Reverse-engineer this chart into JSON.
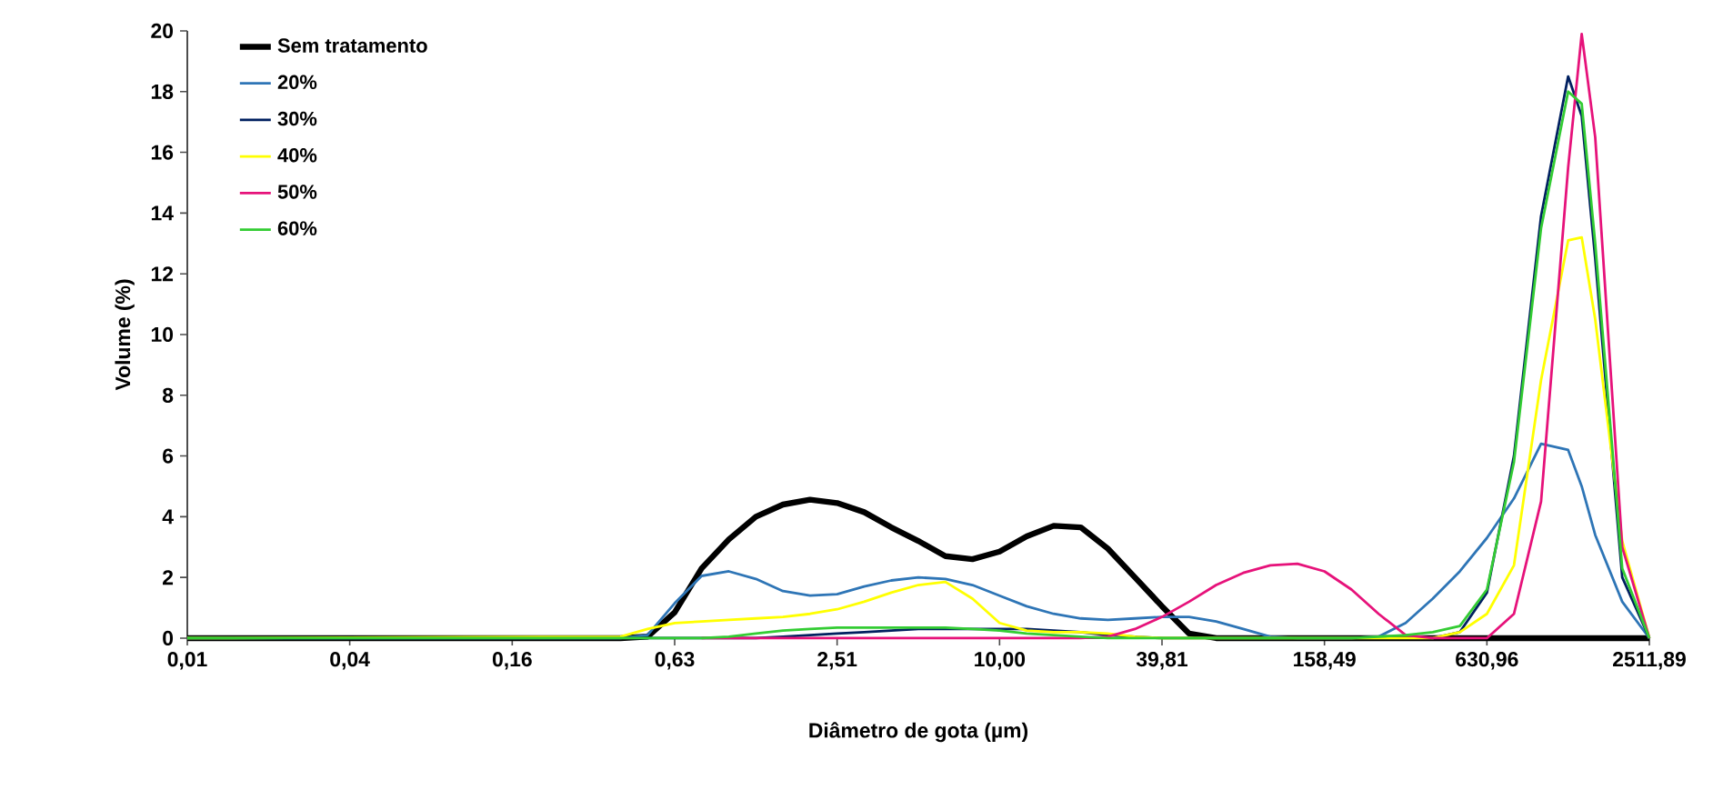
{
  "chart_data": {
    "type": "line",
    "xlabel": "Diâmetro de gota (µm)",
    "ylabel": "Volume (%)",
    "log": "x",
    "legend": "top left",
    "xlim": [
      0.01,
      2511.89
    ],
    "ylim": [
      0,
      20
    ],
    "xticks": [
      {
        "value": 0.01,
        "label": "0,01"
      },
      {
        "value": 0.0398,
        "label": "0,04"
      },
      {
        "value": 0.1585,
        "label": "0,16"
      },
      {
        "value": 0.631,
        "label": "0,63"
      },
      {
        "value": 2.512,
        "label": "2,51"
      },
      {
        "value": 10,
        "label": "10,00"
      },
      {
        "value": 39.81,
        "label": "39,81"
      },
      {
        "value": 158.49,
        "label": "158,49"
      },
      {
        "value": 630.96,
        "label": "630,96"
      },
      {
        "value": 2511.89,
        "label": "2511,89"
      }
    ],
    "yticks": [
      0,
      2,
      4,
      6,
      8,
      10,
      12,
      14,
      16,
      18,
      20
    ],
    "x": [
      0.01,
      0.398,
      0.501,
      0.631,
      0.794,
      1.0,
      1.259,
      1.585,
      1.995,
      2.512,
      3.162,
      3.981,
      5.012,
      6.31,
      7.943,
      10,
      12.59,
      15.85,
      19.95,
      25.12,
      31.62,
      39.81,
      50.12,
      63.1,
      79.43,
      100,
      125.9,
      158.5,
      199.5,
      251.2,
      316.2,
      398.1,
      501.2,
      631.0,
      794.3,
      1000,
      1259,
      1413,
      1585,
      1995,
      2511.89
    ],
    "series": [
      {
        "name": "Sem tratamento",
        "color": "#000000",
        "values": [
          0,
          0,
          0.05,
          0.85,
          2.3,
          3.25,
          4.0,
          4.4,
          4.56,
          4.45,
          4.15,
          3.65,
          3.2,
          2.7,
          2.6,
          2.85,
          3.35,
          3.7,
          3.65,
          2.95,
          2.0,
          1.05,
          0.15,
          0,
          0,
          0,
          0,
          0,
          0,
          0,
          0,
          0,
          0,
          0,
          0,
          0,
          0,
          0,
          0,
          0,
          0
        ]
      },
      {
        "name": "20%",
        "color": "#2e75b6",
        "values": [
          0,
          0,
          0.1,
          1.15,
          2.05,
          2.2,
          1.95,
          1.55,
          1.4,
          1.45,
          1.7,
          1.9,
          2.0,
          1.95,
          1.75,
          1.4,
          1.05,
          0.8,
          0.65,
          0.6,
          0.65,
          0.7,
          0.7,
          0.55,
          0.3,
          0.05,
          0,
          0,
          0,
          0.05,
          0.5,
          1.3,
          2.2,
          3.3,
          4.6,
          6.4,
          6.2,
          5.0,
          3.4,
          1.2,
          0
        ]
      },
      {
        "name": "30%",
        "color": "#002060",
        "values": [
          0,
          0,
          0,
          0,
          0,
          0,
          0,
          0.05,
          0.1,
          0.15,
          0.2,
          0.25,
          0.3,
          0.3,
          0.3,
          0.3,
          0.3,
          0.25,
          0.2,
          0.1,
          0.05,
          0,
          0,
          0,
          0,
          0,
          0,
          0,
          0,
          0,
          0,
          0,
          0.2,
          1.5,
          6.0,
          13.9,
          18.5,
          17.2,
          12.5,
          2.0,
          0
        ]
      },
      {
        "name": "40%",
        "color": "#ffff00",
        "values": [
          0,
          0.05,
          0.3,
          0.5,
          0.55,
          0.6,
          0.65,
          0.7,
          0.8,
          0.95,
          1.2,
          1.5,
          1.75,
          1.85,
          1.3,
          0.5,
          0.25,
          0.2,
          0.2,
          0.15,
          0.05,
          0,
          0,
          0,
          0,
          0,
          0,
          0,
          0,
          0,
          0,
          0,
          0.2,
          0.8,
          2.4,
          8.5,
          13.1,
          13.2,
          10.5,
          3.2,
          0
        ]
      },
      {
        "name": "50%",
        "color": "#e6127a",
        "values": [
          null,
          null,
          null,
          null,
          0,
          0,
          0,
          0,
          0,
          0,
          0,
          0,
          0,
          0,
          0,
          0,
          0,
          0,
          0,
          0.05,
          0.3,
          0.7,
          1.2,
          1.75,
          2.15,
          2.4,
          2.45,
          2.2,
          1.6,
          0.8,
          0.1,
          0,
          0,
          0,
          0.8,
          4.5,
          15.5,
          19.9,
          16.5,
          3.0,
          0
        ]
      },
      {
        "name": "60%",
        "color": "#33cc33",
        "values": [
          0,
          0,
          0,
          0,
          0,
          0.05,
          0.15,
          0.25,
          0.3,
          0.35,
          0.35,
          0.35,
          0.35,
          0.35,
          0.3,
          0.25,
          0.15,
          0.1,
          0.05,
          0,
          0,
          0,
          0,
          0,
          0,
          0,
          0,
          0,
          0,
          0.05,
          0.1,
          0.2,
          0.4,
          1.6,
          5.8,
          13.5,
          18.0,
          17.6,
          13.0,
          2.3,
          0
        ]
      }
    ]
  }
}
